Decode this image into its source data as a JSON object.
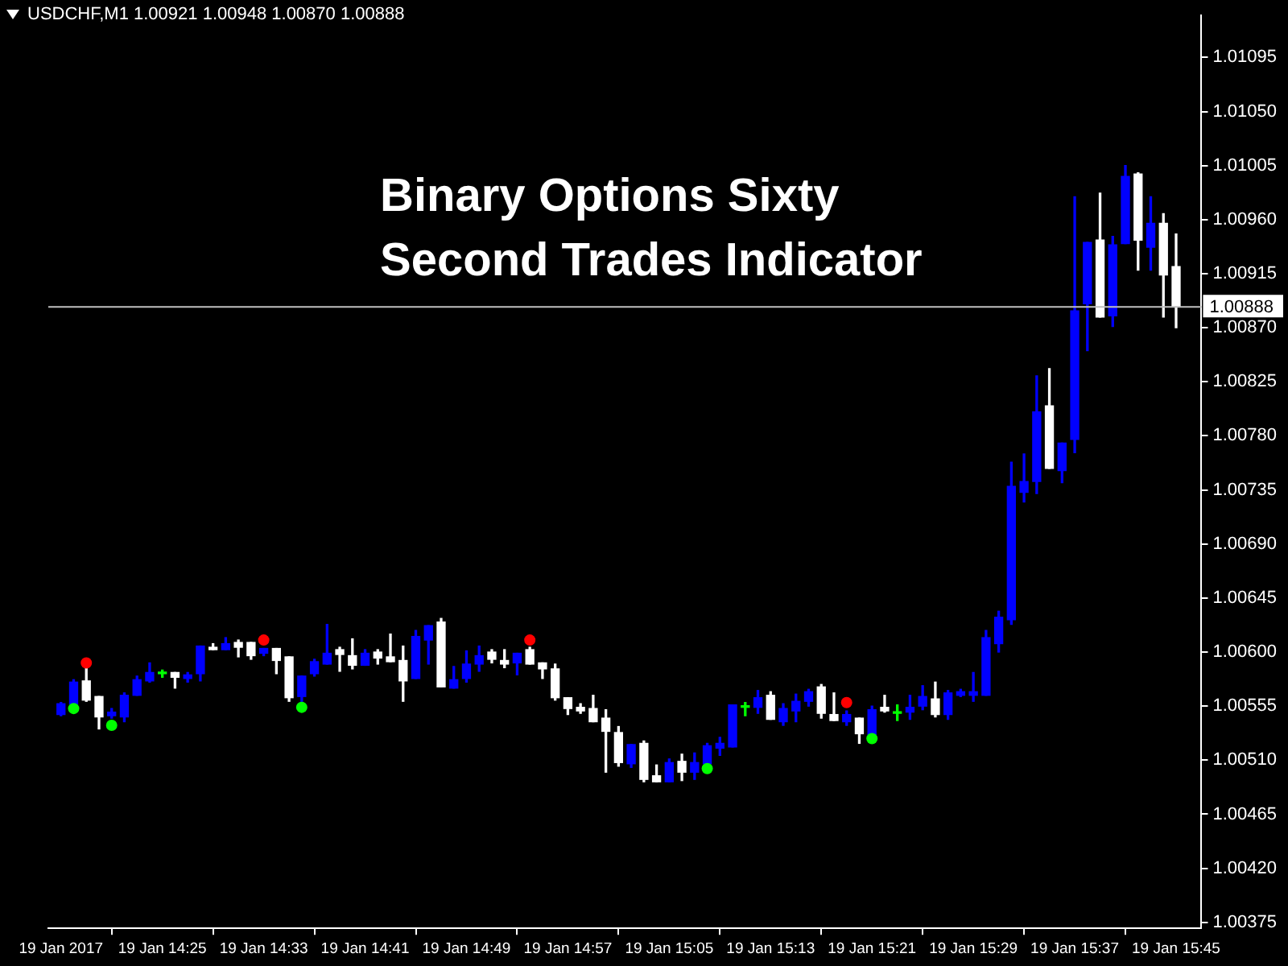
{
  "chart_data": {
    "type": "candlestick",
    "title": "Binary Options Sixty Second Trades Indicator",
    "annotations": [
      "USDCHF,M1 1.00921 1.00948 1.00870 1.00888"
    ],
    "x": [
      "2017-01-19T14:17",
      "2017-01-19T14:18",
      "2017-01-19T14:19",
      "2017-01-19T14:20",
      "2017-01-19T14:21",
      "2017-01-19T14:22",
      "2017-01-19T14:23",
      "2017-01-19T14:24",
      "2017-01-19T14:25",
      "2017-01-19T14:26",
      "2017-01-19T14:27",
      "2017-01-19T14:28",
      "2017-01-19T14:29",
      "2017-01-19T14:30",
      "2017-01-19T14:31",
      "2017-01-19T14:32",
      "2017-01-19T14:33",
      "2017-01-19T14:34",
      "2017-01-19T14:35",
      "2017-01-19T14:36",
      "2017-01-19T14:37",
      "2017-01-19T14:38",
      "2017-01-19T14:39",
      "2017-01-19T14:40",
      "2017-01-19T14:41",
      "2017-01-19T14:42",
      "2017-01-19T14:43",
      "2017-01-19T14:44",
      "2017-01-19T14:45",
      "2017-01-19T14:46",
      "2017-01-19T14:47",
      "2017-01-19T14:48",
      "2017-01-19T14:49",
      "2017-01-19T14:50",
      "2017-01-19T14:51",
      "2017-01-19T14:52",
      "2017-01-19T14:53",
      "2017-01-19T14:54",
      "2017-01-19T14:55",
      "2017-01-19T14:56",
      "2017-01-19T14:57",
      "2017-01-19T14:58",
      "2017-01-19T14:59",
      "2017-01-19T15:00",
      "2017-01-19T15:01",
      "2017-01-19T15:02",
      "2017-01-19T15:03",
      "2017-01-19T15:04",
      "2017-01-19T15:05",
      "2017-01-19T15:06",
      "2017-01-19T15:07",
      "2017-01-19T15:08",
      "2017-01-19T15:09",
      "2017-01-19T15:10",
      "2017-01-19T15:11",
      "2017-01-19T15:12",
      "2017-01-19T15:13",
      "2017-01-19T15:14",
      "2017-01-19T15:15",
      "2017-01-19T15:16",
      "2017-01-19T15:17",
      "2017-01-19T15:18",
      "2017-01-19T15:19",
      "2017-01-19T15:20",
      "2017-01-19T15:21",
      "2017-01-19T15:22",
      "2017-01-19T15:23",
      "2017-01-19T15:24",
      "2017-01-19T15:25",
      "2017-01-19T15:26",
      "2017-01-19T15:27",
      "2017-01-19T15:28",
      "2017-01-19T15:29",
      "2017-01-19T15:30",
      "2017-01-19T15:31",
      "2017-01-19T15:32",
      "2017-01-19T15:33",
      "2017-01-19T15:34",
      "2017-01-19T15:35",
      "2017-01-19T15:36",
      "2017-01-19T15:37",
      "2017-01-19T15:38",
      "2017-01-19T15:39",
      "2017-01-19T15:40",
      "2017-01-19T15:41",
      "2017-01-19T15:42",
      "2017-01-19T15:43",
      "2017-01-19T15:44",
      "2017-01-19T15:45"
    ],
    "ohlc": [
      [
        1.00548,
        1.00558,
        1.00547,
        1.00557
      ],
      [
        1.00557,
        1.00577,
        1.00555,
        1.00575
      ],
      [
        1.00576,
        1.00588,
        1.00559,
        1.0056
      ],
      [
        1.00563,
        1.00563,
        1.00536,
        1.00546
      ],
      [
        1.00547,
        1.00553,
        1.00545,
        1.0055
      ],
      [
        1.00546,
        1.00566,
        1.00542,
        1.00564
      ],
      [
        1.00564,
        1.0058,
        1.00564,
        1.00577
      ],
      [
        1.00576,
        1.00591,
        1.00575,
        1.00583
      ],
      [
        1.00582,
        1.00585,
        1.00579,
        1.00582
      ],
      [
        1.00583,
        1.00583,
        1.0057,
        1.00579
      ],
      [
        1.00578,
        1.00583,
        1.00575,
        1.00581
      ],
      [
        1.00582,
        1.00605,
        1.00576,
        1.00605
      ],
      [
        1.00604,
        1.00607,
        1.00602,
        1.00602
      ],
      [
        1.00602,
        1.00612,
        1.00602,
        1.00607
      ],
      [
        1.00608,
        1.0061,
        1.00596,
        1.00604
      ],
      [
        1.00608,
        1.00608,
        1.00594,
        1.00597
      ],
      [
        1.00599,
        1.00603,
        1.00597,
        1.00603
      ],
      [
        1.00603,
        1.00603,
        1.00582,
        1.00593
      ],
      [
        1.00596,
        1.00596,
        1.00559,
        1.00562
      ],
      [
        1.00563,
        1.0058,
        1.00559,
        1.0058
      ],
      [
        1.00582,
        1.00594,
        1.0058,
        1.00592
      ],
      [
        1.0059,
        1.00623,
        1.0059,
        1.00599
      ],
      [
        1.00602,
        1.00604,
        1.00584,
        1.00598
      ],
      [
        1.00597,
        1.00611,
        1.00586,
        1.00589
      ],
      [
        1.00589,
        1.00602,
        1.00589,
        1.00599
      ],
      [
        1.006,
        1.00602,
        1.0059,
        1.00595
      ],
      [
        1.00596,
        1.00615,
        1.00592,
        1.00592
      ],
      [
        1.00593,
        1.00605,
        1.00559,
        1.00576
      ],
      [
        1.00578,
        1.00618,
        1.00578,
        1.00613
      ],
      [
        1.0061,
        1.00622,
        1.0059,
        1.00622
      ],
      [
        1.00625,
        1.00628,
        1.00571,
        1.00571
      ],
      [
        1.0057,
        1.00588,
        1.0057,
        1.00577
      ],
      [
        1.00578,
        1.00601,
        1.00575,
        1.0059
      ],
      [
        1.0059,
        1.00605,
        1.00584,
        1.00597
      ],
      [
        1.006,
        1.00602,
        1.00591,
        1.00594
      ],
      [
        1.00593,
        1.00602,
        1.00587,
        1.0059
      ],
      [
        1.00591,
        1.00599,
        1.00581,
        1.00599
      ],
      [
        1.00602,
        1.00604,
        1.0059,
        1.0059
      ],
      [
        1.00591,
        1.00591,
        1.00578,
        1.00586
      ],
      [
        1.00586,
        1.0059,
        1.0056,
        1.00562
      ],
      [
        1.00562,
        1.00562,
        1.00548,
        1.00553
      ],
      [
        1.00554,
        1.00557,
        1.00549,
        1.00551
      ],
      [
        1.00553,
        1.00564,
        1.00542,
        1.00542
      ],
      [
        1.00545,
        1.00552,
        1.005,
        1.00534
      ],
      [
        1.00533,
        1.00538,
        1.00505,
        1.00508
      ],
      [
        1.00507,
        1.00523,
        1.00504,
        1.00523
      ],
      [
        1.00524,
        1.00526,
        1.00492,
        1.00494
      ],
      [
        1.00497,
        1.00506,
        1.00492,
        1.00492
      ],
      [
        1.00492,
        1.00511,
        1.00492,
        1.00508
      ],
      [
        1.00509,
        1.00515,
        1.00493,
        1.005
      ],
      [
        1.005,
        1.00516,
        1.00494,
        1.00508
      ],
      [
        1.00507,
        1.00524,
        1.00503,
        1.00522
      ],
      [
        1.0052,
        1.00529,
        1.00514,
        1.00524
      ],
      [
        1.00521,
        1.00556,
        1.00521,
        1.00556
      ],
      [
        1.00554,
        1.00558,
        1.00547,
        1.00554
      ],
      [
        1.00554,
        1.00568,
        1.00549,
        1.00562
      ],
      [
        1.00564,
        1.00567,
        1.00544,
        1.00544
      ],
      [
        1.00542,
        1.00557,
        1.00539,
        1.00553
      ],
      [
        1.00551,
        1.00565,
        1.00542,
        1.00559
      ],
      [
        1.00559,
        1.00569,
        1.00555,
        1.00567
      ],
      [
        1.00571,
        1.00573,
        1.00545,
        1.00549
      ],
      [
        1.00548,
        1.00566,
        1.00543,
        1.00543
      ],
      [
        1.00542,
        1.00551,
        1.00539,
        1.00548
      ],
      [
        1.00545,
        1.00545,
        1.00524,
        1.00532
      ],
      [
        1.00531,
        1.00555,
        1.00531,
        1.00552
      ],
      [
        1.00554,
        1.00564,
        1.0055,
        1.00551
      ],
      [
        1.00549,
        1.00556,
        1.00543,
        1.00549
      ],
      [
        1.0055,
        1.00564,
        1.00544,
        1.00554
      ],
      [
        1.00555,
        1.00572,
        1.00552,
        1.00563
      ],
      [
        1.00561,
        1.00575,
        1.00546,
        1.00548
      ],
      [
        1.00548,
        1.00568,
        1.00544,
        1.00566
      ],
      [
        1.00564,
        1.00569,
        1.00563,
        1.00567
      ],
      [
        1.00564,
        1.00583,
        1.00559,
        1.00567
      ],
      [
        1.00564,
        1.00618,
        1.00564,
        1.00612
      ],
      [
        1.00607,
        1.00634,
        1.006,
        1.00629
      ],
      [
        1.00627,
        1.00758,
        1.00623,
        1.00738
      ],
      [
        1.00733,
        1.00765,
        1.00725,
        1.00742
      ],
      [
        1.00742,
        1.0083,
        1.00732,
        1.008
      ],
      [
        1.00805,
        1.00836,
        1.00753,
        1.00753
      ],
      [
        1.00751,
        1.00774,
        1.00741,
        1.00774
      ],
      [
        1.00777,
        1.00979,
        1.00766,
        1.00884
      ],
      [
        1.0089,
        1.00941,
        1.00851,
        1.00941
      ],
      [
        1.00943,
        1.00982,
        1.00879,
        1.00879
      ],
      [
        1.0088,
        1.00946,
        1.00871,
        1.00939
      ],
      [
        1.0094,
        1.01005,
        1.0094,
        1.00996
      ],
      [
        1.00998,
        1.00999,
        1.00918,
        1.00943
      ],
      [
        1.00937,
        1.00979,
        1.00918,
        1.00957
      ],
      [
        1.00957,
        1.00965,
        1.00879,
        1.00914
      ],
      [
        1.00921,
        1.00948,
        1.0087,
        1.00888
      ]
    ],
    "colors": [
      "#0000ff",
      "#0000ff",
      "#ffffff",
      "#ffffff",
      "#0000ff",
      "#0000ff",
      "#0000ff",
      "#0000ff",
      "#00ff00",
      "#ffffff",
      "#0000ff",
      "#0000ff",
      "#ffffff",
      "#0000ff",
      "#ffffff",
      "#ffffff",
      "#0000ff",
      "#ffffff",
      "#ffffff",
      "#0000ff",
      "#0000ff",
      "#0000ff",
      "#ffffff",
      "#ffffff",
      "#0000ff",
      "#ffffff",
      "#ffffff",
      "#ffffff",
      "#0000ff",
      "#0000ff",
      "#ffffff",
      "#0000ff",
      "#0000ff",
      "#0000ff",
      "#ffffff",
      "#ffffff",
      "#0000ff",
      "#ffffff",
      "#ffffff",
      "#ffffff",
      "#ffffff",
      "#ffffff",
      "#ffffff",
      "#ffffff",
      "#ffffff",
      "#0000ff",
      "#ffffff",
      "#ffffff",
      "#0000ff",
      "#ffffff",
      "#0000ff",
      "#0000ff",
      "#0000ff",
      "#0000ff",
      "#00ff00",
      "#0000ff",
      "#ffffff",
      "#0000ff",
      "#0000ff",
      "#0000ff",
      "#ffffff",
      "#ffffff",
      "#0000ff",
      "#ffffff",
      "#0000ff",
      "#ffffff",
      "#00ff00",
      "#0000ff",
      "#0000ff",
      "#ffffff",
      "#0000ff",
      "#0000ff",
      "#0000ff",
      "#0000ff",
      "#0000ff",
      "#0000ff",
      "#0000ff",
      "#0000ff",
      "#ffffff",
      "#0000ff",
      "#0000ff",
      "#0000ff",
      "#ffffff",
      "#0000ff",
      "#0000ff",
      "#ffffff",
      "#0000ff",
      "#ffffff",
      "#ffffff"
    ],
    "series": [
      {
        "type": "scatter",
        "color": "#00ff00",
        "x": [
          "2017-01-19T14:18",
          "2017-01-19T14:21",
          "2017-01-19T14:36",
          "2017-01-19T15:08",
          "2017-01-19T15:21"
        ],
        "values": [
          1.00553,
          1.00539,
          1.00554,
          1.00503,
          1.00528
        ]
      },
      {
        "type": "scatter",
        "color": "#ff0000",
        "x": [
          "2017-01-19T14:19",
          "2017-01-19T14:33",
          "2017-01-19T14:54",
          "2017-01-19T15:19"
        ],
        "values": [
          1.00591,
          1.0061,
          1.0061,
          1.00558
        ]
      }
    ],
    "marker": "circle",
    "xlim": [
      "2017-01-19T14:16",
      "2017-01-19T15:47"
    ],
    "xticks": [
      {
        "value": "2017-01-19T14:17",
        "label": "19 Jan 2017"
      },
      {
        "value": "2017-01-19T14:25",
        "label": "19 Jan 14:25"
      },
      {
        "value": "2017-01-19T14:33",
        "label": "19 Jan 14:33"
      },
      {
        "value": "2017-01-19T14:41",
        "label": "19 Jan 14:41"
      },
      {
        "value": "2017-01-19T14:49",
        "label": "19 Jan 14:49"
      },
      {
        "value": "2017-01-19T14:57",
        "label": "19 Jan 14:57"
      },
      {
        "value": "2017-01-19T15:05",
        "label": "19 Jan 15:05"
      },
      {
        "value": "2017-01-19T15:13",
        "label": "19 Jan 15:13"
      },
      {
        "value": "2017-01-19T15:21",
        "label": "19 Jan 15:21"
      },
      {
        "value": "2017-01-19T15:29",
        "label": "19 Jan 15:29"
      },
      {
        "value": "2017-01-19T15:37",
        "label": "19 Jan 15:37"
      },
      {
        "value": "2017-01-19T15:45",
        "label": "19 Jan 15:45"
      }
    ],
    "ylim": [
      1.0037,
      1.0113
    ],
    "yticks": [
      {
        "value": 1.00375,
        "label": "1.00375"
      },
      {
        "value": 1.0042,
        "label": "1.00420"
      },
      {
        "value": 1.00465,
        "label": "1.00465"
      },
      {
        "value": 1.0051,
        "label": "1.00510"
      },
      {
        "value": 1.00555,
        "label": "1.00555"
      },
      {
        "value": 1.006,
        "label": "1.00600"
      },
      {
        "value": 1.00645,
        "label": "1.00645"
      },
      {
        "value": 1.0069,
        "label": "1.00690"
      },
      {
        "value": 1.00735,
        "label": "1.00735"
      },
      {
        "value": 1.0078,
        "label": "1.00780"
      },
      {
        "value": 1.00825,
        "label": "1.00825"
      },
      {
        "value": 1.0087,
        "label": "1.00870"
      },
      {
        "value": 1.00915,
        "label": "1.00915"
      },
      {
        "value": 1.0096,
        "label": "1.00960"
      },
      {
        "value": 1.01005,
        "label": "1.01005"
      },
      {
        "value": 1.0105,
        "label": "1.01050"
      },
      {
        "value": 1.01095,
        "label": "1.01095"
      }
    ],
    "ref_lines": [
      {
        "axis": "y",
        "value": 1.00888,
        "label": "1.00888",
        "color": "#c0c0c0"
      }
    ],
    "grid": false,
    "legend": false
  }
}
